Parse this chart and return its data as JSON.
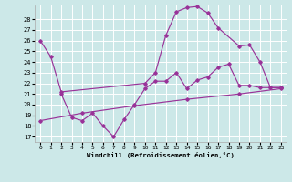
{
  "background_color": "#cce8e8",
  "grid_color": "#ffffff",
  "line_color": "#993399",
  "xlabel": "Windchill (Refroidissement éolien,°C)",
  "ylim": [
    16.5,
    29.3
  ],
  "xlim": [
    -0.5,
    23.5
  ],
  "yticks": [
    17,
    18,
    19,
    20,
    21,
    22,
    23,
    24,
    25,
    26,
    27,
    28
  ],
  "xticks": [
    0,
    1,
    2,
    3,
    4,
    5,
    6,
    7,
    8,
    9,
    10,
    11,
    12,
    13,
    14,
    15,
    16,
    17,
    18,
    19,
    20,
    21,
    22,
    23
  ],
  "line1_x": [
    0,
    1,
    2,
    10,
    11,
    12,
    13,
    14,
    15,
    16,
    17,
    19,
    20,
    21,
    22,
    23
  ],
  "line1_y": [
    26,
    24.5,
    21.2,
    22.0,
    23.0,
    26.5,
    28.7,
    29.1,
    29.2,
    28.6,
    27.2,
    25.5,
    25.6,
    24.0,
    21.6,
    21.6
  ],
  "line2_x": [
    2,
    3,
    4,
    5,
    6,
    7,
    8,
    9,
    10,
    11,
    12,
    13,
    14,
    15,
    16,
    17,
    18,
    19,
    20,
    21,
    22,
    23
  ],
  "line2_y": [
    21.0,
    18.8,
    18.5,
    19.2,
    18.0,
    17.0,
    18.6,
    20.0,
    21.5,
    22.2,
    22.2,
    23.0,
    21.5,
    22.3,
    22.6,
    23.5,
    23.8,
    21.8,
    21.8,
    21.6,
    21.6,
    21.6
  ],
  "line3_x": [
    0,
    4,
    9,
    14,
    19,
    23
  ],
  "line3_y": [
    18.5,
    19.2,
    19.9,
    20.5,
    21.0,
    21.5
  ]
}
